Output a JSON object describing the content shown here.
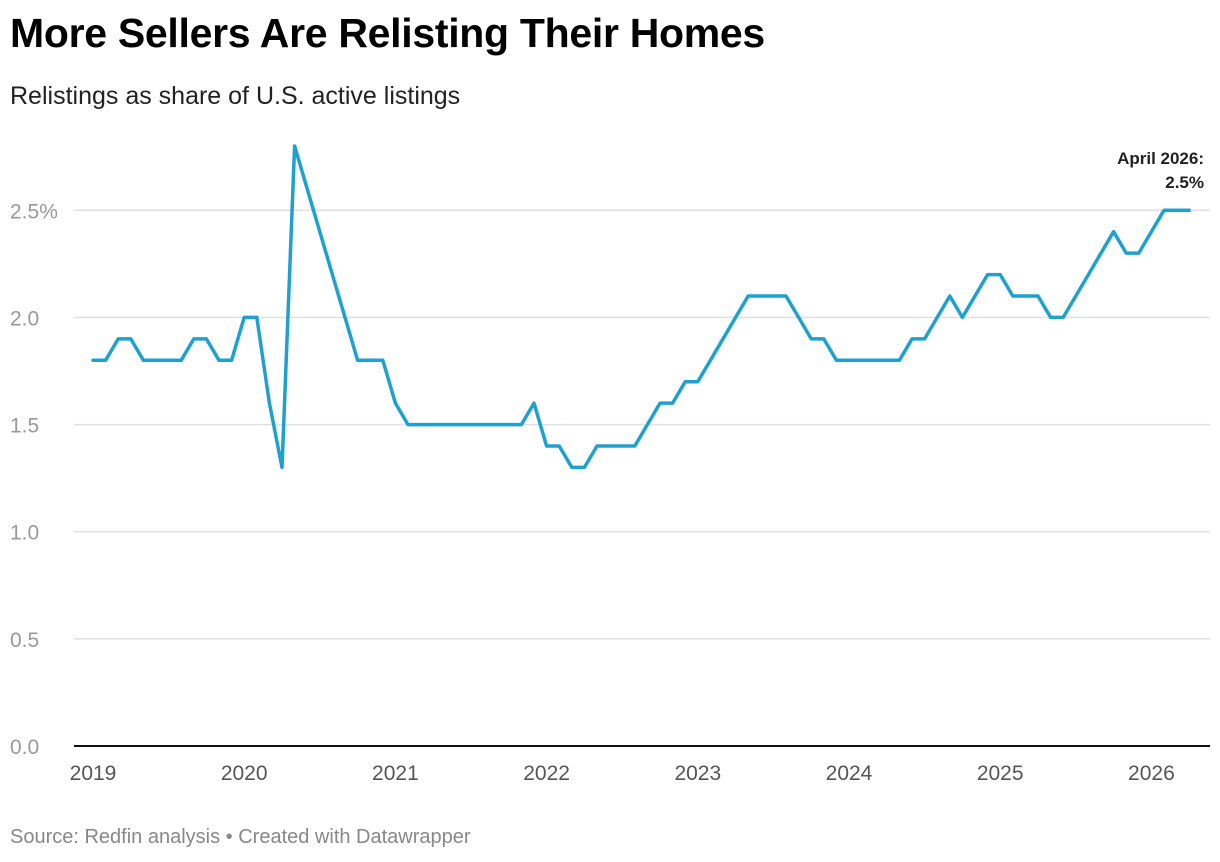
{
  "title": "More Sellers Are Relisting Their Homes",
  "subtitle": "Relistings as share of U.S. active listings",
  "footer": "Source: Redfin analysis • Created with Datawrapper",
  "colors": {
    "line": "#1fa1cf",
    "grid": "#e0e0e0",
    "axis": "#111111"
  },
  "chart_data": {
    "type": "line",
    "title": "More Sellers Are Relisting Their Homes",
    "subtitle": "Relistings as share of U.S. active listings",
    "xlabel": "",
    "ylabel": "",
    "ylim": [
      0,
      2.8
    ],
    "xlim": [
      "2019-01",
      "2026-04"
    ],
    "grid": true,
    "y_ticks": [
      "0.0",
      "0.5",
      "1.0",
      "1.5",
      "2.0",
      "2.5%"
    ],
    "y_tick_values": [
      0,
      0.5,
      1.0,
      1.5,
      2.0,
      2.5
    ],
    "x_ticks": [
      "2019",
      "2020",
      "2021",
      "2022",
      "2023",
      "2024",
      "2025",
      "2026"
    ],
    "series": [
      {
        "x": [
          "2019-01",
          "2019-02",
          "2019-03",
          "2019-04",
          "2019-05",
          "2019-06",
          "2019-07",
          "2019-08",
          "2019-09",
          "2019-10",
          "2019-11",
          "2019-12",
          "2020-01",
          "2020-02",
          "2020-03",
          "2020-04",
          "2020-05",
          "2020-06",
          "2020-07",
          "2020-08",
          "2020-09",
          "2020-10",
          "2020-11",
          "2020-12",
          "2021-01",
          "2021-02",
          "2021-03",
          "2021-04",
          "2021-05",
          "2021-06",
          "2021-07",
          "2021-08",
          "2021-09",
          "2021-10",
          "2021-11",
          "2021-12",
          "2022-01",
          "2022-02",
          "2022-03",
          "2022-04",
          "2022-05",
          "2022-06",
          "2022-07",
          "2022-08",
          "2022-09",
          "2022-10",
          "2022-11",
          "2022-12",
          "2023-01",
          "2023-02",
          "2023-03",
          "2023-04",
          "2023-05",
          "2023-06",
          "2023-07",
          "2023-08",
          "2023-09",
          "2023-10",
          "2023-11",
          "2023-12",
          "2024-01",
          "2024-02",
          "2024-03",
          "2024-04",
          "2024-05",
          "2024-06",
          "2024-07",
          "2024-08",
          "2024-09",
          "2024-10",
          "2024-11",
          "2024-12",
          "2025-01",
          "2025-02",
          "2025-03",
          "2025-04",
          "2025-05",
          "2025-06",
          "2025-07",
          "2025-08",
          "2025-09",
          "2025-10",
          "2025-11",
          "2025-12",
          "2026-01",
          "2026-02",
          "2026-03",
          "2026-04"
        ],
        "values": [
          1.8,
          1.8,
          1.9,
          1.9,
          1.8,
          1.8,
          1.8,
          1.8,
          1.9,
          1.9,
          1.8,
          1.8,
          2.0,
          2.0,
          1.6,
          1.3,
          2.8,
          2.6,
          2.4,
          2.2,
          2.0,
          1.8,
          1.8,
          1.8,
          1.6,
          1.5,
          1.5,
          1.5,
          1.5,
          1.5,
          1.5,
          1.5,
          1.5,
          1.5,
          1.5,
          1.6,
          1.4,
          1.4,
          1.3,
          1.3,
          1.4,
          1.4,
          1.4,
          1.4,
          1.5,
          1.6,
          1.6,
          1.7,
          1.7,
          1.8,
          1.9,
          2.0,
          2.1,
          2.1,
          2.1,
          2.1,
          2.0,
          1.9,
          1.9,
          1.8,
          1.8,
          1.8,
          1.8,
          1.8,
          1.8,
          1.9,
          1.9,
          2.0,
          2.1,
          2.0,
          2.1,
          2.2,
          2.2,
          2.1,
          2.1,
          2.1,
          2.0,
          2.0,
          2.1,
          2.2,
          2.3,
          2.4,
          2.3,
          2.3,
          2.4,
          2.5,
          2.5,
          2.5
        ]
      }
    ],
    "annotation": {
      "line1": "April 2026:",
      "line2": "2.5%"
    }
  }
}
